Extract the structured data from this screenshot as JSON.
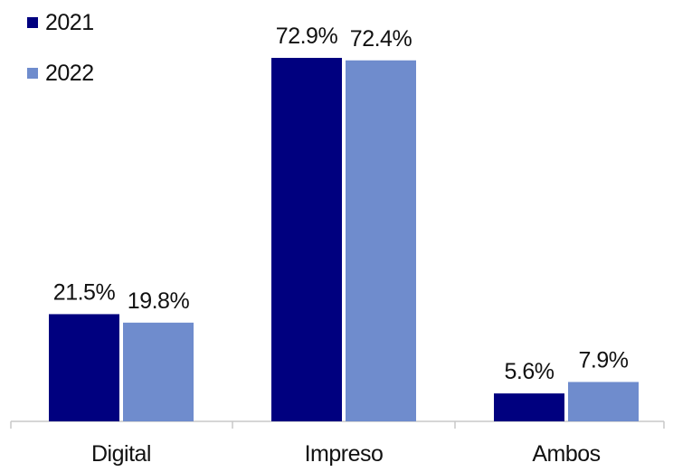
{
  "chart_data": {
    "type": "bar",
    "title": "",
    "xlabel": "",
    "ylabel": "",
    "categories": [
      "Digital",
      "Impreso",
      "Ambos"
    ],
    "series": [
      {
        "name": "2021",
        "values": [
          21.5,
          72.9,
          5.6
        ],
        "labels": [
          "21.5%",
          "72.9%",
          "5.6%"
        ],
        "color": "#00007f"
      },
      {
        "name": "2022",
        "values": [
          19.8,
          72.4,
          7.9
        ],
        "labels": [
          "19.8%",
          "72.4%",
          "7.9%"
        ],
        "color": "#6f8ccd"
      }
    ],
    "ylim": [
      0,
      80
    ],
    "grid": false,
    "legend_position": "top-left",
    "axis_color": "#c8c8c8"
  }
}
